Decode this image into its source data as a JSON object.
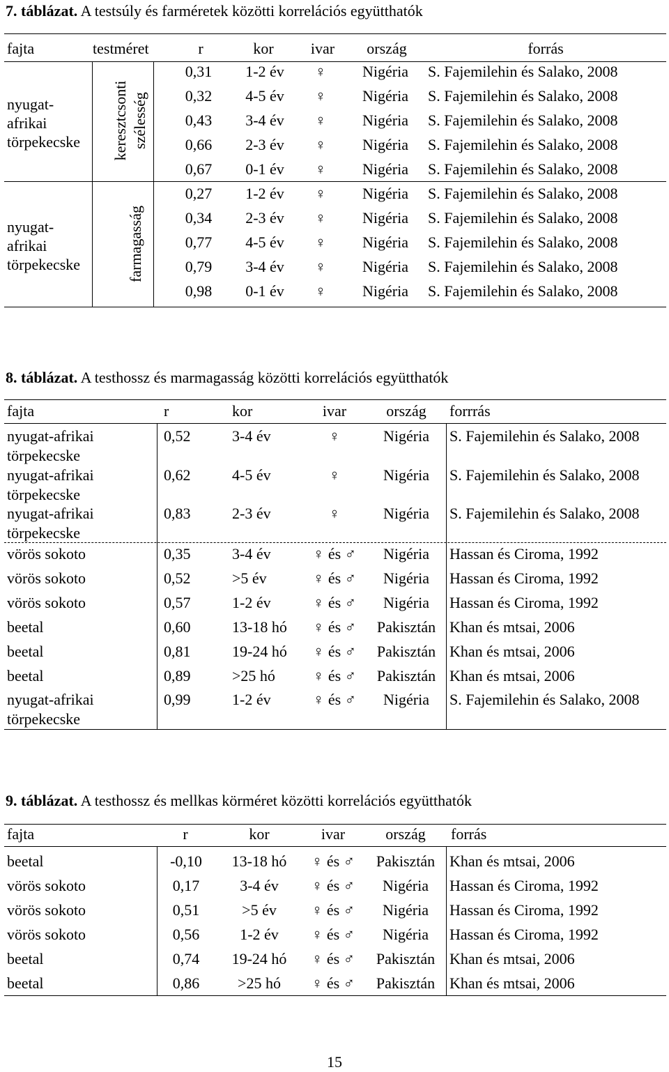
{
  "table7": {
    "label": "7. táblázat.",
    "title": "A testsúly és farméretek közötti korrelációs együtthatók",
    "header": [
      "fajta",
      "testméret",
      "r",
      "kor",
      "ivar",
      "ország",
      "forrás"
    ],
    "groups": [
      {
        "fajta": [
          "nyugat-",
          "afrikai",
          "törpekecske"
        ],
        "testmeret": [
          "keresztcsonti",
          "szélesség"
        ],
        "rows": [
          [
            "0,31",
            "1-2 év",
            "♀",
            "Nigéria",
            "S. Fajemilehin és Salako, 2008"
          ],
          [
            "0,32",
            "4-5 év",
            "♀",
            "Nigéria",
            "S. Fajemilehin és Salako, 2008"
          ],
          [
            "0,43",
            "3-4 év",
            "♀",
            "Nigéria",
            "S. Fajemilehin és Salako, 2008"
          ],
          [
            "0,66",
            "2-3 év",
            "♀",
            "Nigéria",
            "S. Fajemilehin és Salako, 2008"
          ],
          [
            "0,67",
            "0-1 év",
            "♀",
            "Nigéria",
            "S. Fajemilehin és Salako, 2008"
          ]
        ]
      },
      {
        "fajta": [
          "nyugat-",
          "afrikai",
          "törpekecske"
        ],
        "testmeret": [
          "farmagasság"
        ],
        "rows": [
          [
            "0,27",
            "1-2 év",
            "♀",
            "Nigéria",
            "S. Fajemilehin és Salako, 2008"
          ],
          [
            "0,34",
            "2-3 év",
            "♀",
            "Nigéria",
            "S. Fajemilehin és Salako, 2008"
          ],
          [
            "0,77",
            "4-5 év",
            "♀",
            "Nigéria",
            "S. Fajemilehin és Salako, 2008"
          ],
          [
            "0,79",
            "3-4 év",
            "♀",
            "Nigéria",
            "S. Fajemilehin és Salako, 2008"
          ],
          [
            "0,98",
            "0-1 év",
            "♀",
            "Nigéria",
            "S. Fajemilehin és Salako, 2008"
          ]
        ]
      }
    ]
  },
  "table8": {
    "label": "8. táblázat.",
    "title": "A testhossz és marmagasság közötti korrelációs együtthatók",
    "header": [
      "fajta",
      "r",
      "kor",
      "ivar",
      "ország",
      "forrrás"
    ],
    "rows": [
      [
        [
          "nyugat-afrikai",
          "törpekecske"
        ],
        "0,52",
        "3-4 év",
        "♀",
        "Nigéria",
        "S. Fajemilehin és Salako, 2008"
      ],
      [
        [
          "nyugat-afrikai",
          "törpekecske"
        ],
        "0,62",
        "4-5 év",
        "♀",
        "Nigéria",
        "S. Fajemilehin és Salako, 2008"
      ],
      [
        [
          "nyugat-afrikai",
          "törpekecske"
        ],
        "0,83",
        "2-3 év",
        "♀",
        "Nigéria",
        "S. Fajemilehin és Salako, 2008"
      ],
      [
        [
          "vörös sokoto"
        ],
        "0,35",
        "3-4 év",
        "♀ és ♂",
        "Nigéria",
        "Hassan és Ciroma, 1992"
      ],
      [
        [
          "vörös sokoto"
        ],
        "0,52",
        ">5 év",
        "♀ és ♂",
        "Nigéria",
        "Hassan és Ciroma, 1992"
      ],
      [
        [
          "vörös sokoto"
        ],
        "0,57",
        "1-2 év",
        "♀ és ♂",
        "Nigéria",
        "Hassan és Ciroma, 1992"
      ],
      [
        [
          "beetal"
        ],
        "0,60",
        "13-18 hó",
        "♀ és ♂",
        "Pakisztán",
        "Khan és mtsai, 2006"
      ],
      [
        [
          "beetal"
        ],
        "0,81",
        "19-24 hó",
        "♀ és ♂",
        "Pakisztán",
        "Khan és mtsai, 2006"
      ],
      [
        [
          "beetal"
        ],
        "0,89",
        ">25 hó",
        "♀ és ♂",
        "Pakisztán",
        "Khan és mtsai, 2006"
      ],
      [
        [
          "nyugat-afrikai",
          "törpekecske"
        ],
        "0,99",
        "1-2 év",
        "♀ és ♂",
        "Nigéria",
        "S. Fajemilehin és Salako, 2008"
      ]
    ]
  },
  "table9": {
    "label": "9. táblázat.",
    "title": "A testhossz és mellkas körméret közötti korrelációs együtthatók",
    "header": [
      "fajta",
      "r",
      "kor",
      "ivar",
      "ország",
      "forrás"
    ],
    "rows": [
      [
        "beetal",
        "-0,10",
        "13-18 hó",
        "♀ és ♂",
        "Pakisztán",
        "Khan és mtsai, 2006"
      ],
      [
        "vörös sokoto",
        "0,17",
        "3-4 év",
        "♀ és ♂",
        "Nigéria",
        "Hassan és Ciroma, 1992"
      ],
      [
        "vörös sokoto",
        "0,51",
        ">5 év",
        "♀ és ♂",
        "Nigéria",
        "Hassan és Ciroma, 1992"
      ],
      [
        "vörös sokoto",
        "0,56",
        "1-2 év",
        "♀ és ♂",
        "Nigéria",
        "Hassan és Ciroma, 1992"
      ],
      [
        "beetal",
        "0,74",
        "19-24 hó",
        "♀ és ♂",
        "Pakisztán",
        "Khan és mtsai, 2006"
      ],
      [
        "beetal",
        "0,86",
        ">25 hó",
        "♀ és ♂",
        "Pakisztán",
        "Khan és mtsai, 2006"
      ]
    ]
  },
  "page_number": "15"
}
